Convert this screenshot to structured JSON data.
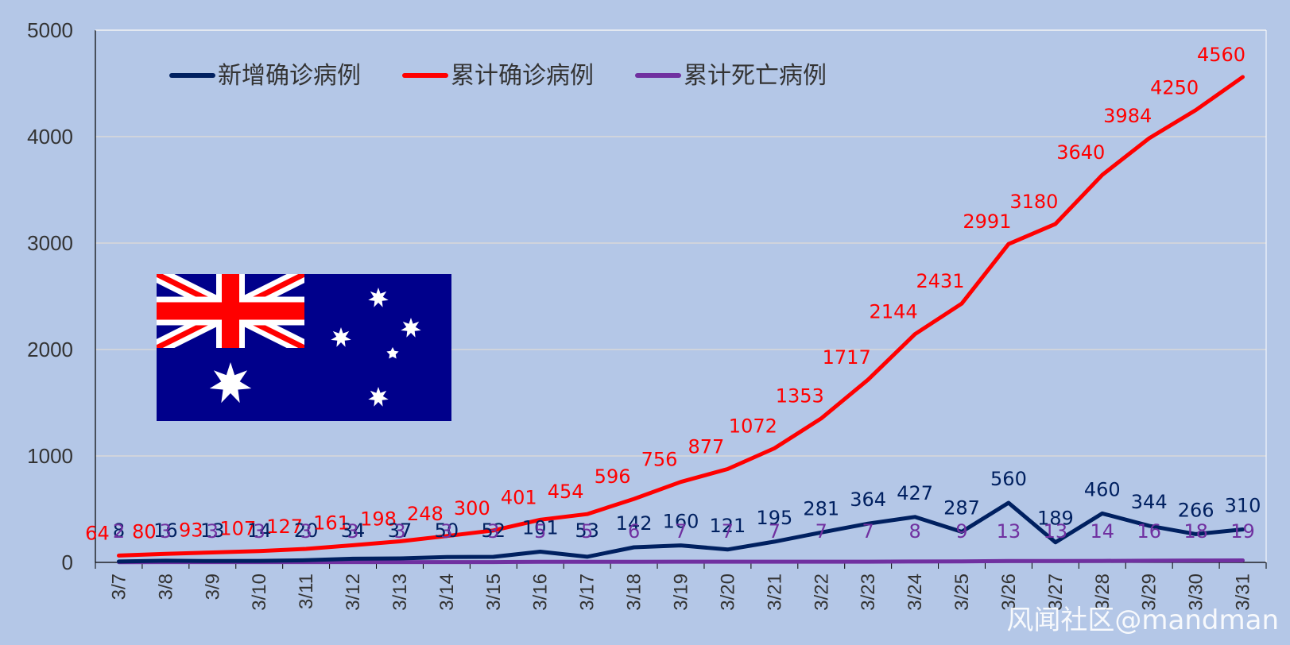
{
  "chart_data": {
    "type": "line",
    "title": "",
    "xlabel": "",
    "ylabel": "",
    "ylim": [
      0,
      5000
    ],
    "yticks": [
      0,
      1000,
      2000,
      3000,
      4000,
      5000
    ],
    "grid": true,
    "legend_position": "top-left",
    "categories": [
      "3/7",
      "3/8",
      "3/9",
      "3/10",
      "3/11",
      "3/12",
      "3/13",
      "3/14",
      "3/15",
      "3/16",
      "3/17",
      "3/18",
      "3/19",
      "3/20",
      "3/21",
      "3/22",
      "3/23",
      "3/24",
      "3/25",
      "3/26",
      "3/27",
      "3/28",
      "3/29",
      "3/30",
      "3/31"
    ],
    "series": [
      {
        "name": "新增确诊病例",
        "color": "#002060",
        "values": [
          8,
          16,
          13,
          14,
          20,
          34,
          37,
          50,
          52,
          101,
          53,
          142,
          160,
          121,
          195,
          281,
          364,
          427,
          287,
          560,
          189,
          460,
          344,
          266,
          310
        ]
      },
      {
        "name": "累计确诊病例",
        "color": "#ff0000",
        "values": [
          64,
          80,
          93,
          107,
          127,
          161,
          198,
          248,
          300,
          401,
          454,
          596,
          756,
          877,
          1072,
          1353,
          1717,
          2144,
          2431,
          2991,
          3180,
          3640,
          3984,
          4250,
          4560
        ]
      },
      {
        "name": "累计死亡病例",
        "color": "#7030a0",
        "values": [
          2,
          3,
          3,
          3,
          3,
          3,
          3,
          3,
          3,
          5,
          5,
          6,
          7,
          7,
          7,
          7,
          7,
          8,
          9,
          13,
          13,
          14,
          16,
          18,
          19
        ]
      }
    ]
  },
  "watermark": "风闻社区@mandman",
  "flag": {
    "name": "australian-flag",
    "background": "#00008b",
    "cross_red": "#ff0000",
    "white": "#ffffff"
  }
}
